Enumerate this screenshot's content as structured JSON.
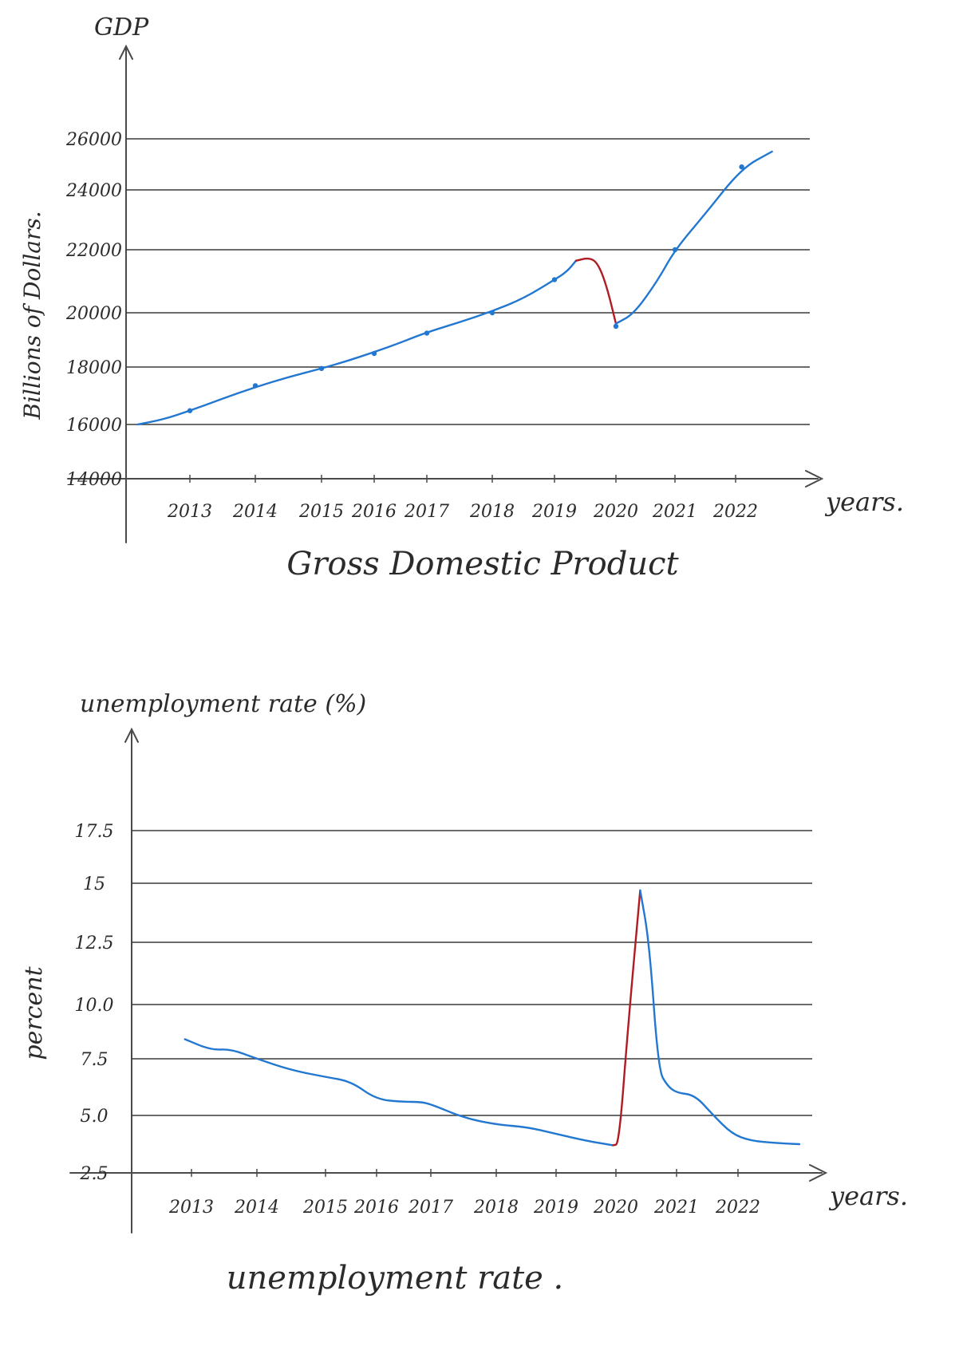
{
  "chart_data": [
    {
      "type": "line",
      "title": "Gross Domestic Product",
      "ylabel_top": "GDP",
      "ylabel_side": "Billions of Dollars.",
      "xlabel": "years.",
      "ylim": [
        14000,
        26000
      ],
      "yticks": [
        "14000",
        "16000",
        "18000",
        "20000",
        "22000",
        "24000",
        "26000"
      ],
      "xticks": [
        "2013",
        "2014",
        "2015",
        "2016",
        "2017",
        "2018",
        "2019",
        "2020",
        "2021",
        "2022"
      ],
      "grid": true,
      "series": [
        {
          "color": "#2277d1",
          "points": [
            [
              2012.2,
              16000
            ],
            [
              2012.6,
              16180
            ],
            [
              2013.0,
              16480
            ],
            [
              2013.5,
              16900
            ],
            [
              2014.0,
              17300
            ],
            [
              2014.5,
              17650
            ],
            [
              2015.0,
              17950
            ],
            [
              2015.5,
              18230
            ],
            [
              2016.0,
              18550
            ],
            [
              2016.5,
              18900
            ],
            [
              2017.0,
              19280
            ],
            [
              2017.5,
              19650
            ],
            [
              2018.0,
              20050
            ],
            [
              2018.5,
              20450
            ],
            [
              2019.0,
              21050
            ],
            [
              2019.2,
              21300
            ],
            [
              2019.35,
              21650
            ]
          ],
          "markers": [
            [
              2013.0,
              16480
            ],
            [
              2014.0,
              17350
            ],
            [
              2015.0,
              17950
            ],
            [
              2016.0,
              18500
            ],
            [
              2017.0,
              19250
            ],
            [
              2018.0,
              20000
            ],
            [
              2019.0,
              21050
            ],
            [
              2020.0,
              19500
            ],
            [
              2021.0,
              22000
            ],
            [
              2022.1,
              24900
            ]
          ]
        },
        {
          "color": "#b01c22",
          "points": [
            [
              2019.35,
              21650
            ],
            [
              2019.55,
              21750
            ],
            [
              2019.7,
              21600
            ],
            [
              2019.85,
              20850
            ],
            [
              2020.0,
              19600
            ]
          ]
        },
        {
          "color": "#2277d1",
          "points": [
            [
              2020.0,
              19600
            ],
            [
              2020.3,
              19950
            ],
            [
              2020.7,
              21000
            ],
            [
              2021.0,
              22000
            ],
            [
              2021.5,
              23200
            ],
            [
              2022.1,
              24850
            ],
            [
              2022.6,
              25500
            ]
          ]
        }
      ]
    },
    {
      "type": "line",
      "title": "unemployment rate .",
      "ylabel_top": "unemployment rate (%)",
      "ylabel_side": "percent",
      "xlabel": "years.",
      "ylim": [
        2.5,
        17.5
      ],
      "yticks": [
        "2.5",
        "5.0",
        "7.5",
        "10.0",
        "12.5",
        "15",
        "17.5"
      ],
      "xticks": [
        "2013",
        "2014",
        "2015",
        "2016",
        "2017",
        "2018",
        "2019",
        "2020",
        "2021",
        "2022"
      ],
      "grid": true,
      "series": [
        {
          "color": "#2277d1",
          "points": [
            [
              2012.9,
              8.4
            ],
            [
              2013.3,
              7.9
            ],
            [
              2013.6,
              7.95
            ],
            [
              2014.0,
              7.5
            ],
            [
              2014.5,
              7.0
            ],
            [
              2015.0,
              6.7
            ],
            [
              2015.5,
              6.5
            ],
            [
              2016.0,
              5.7
            ],
            [
              2016.5,
              5.6
            ],
            [
              2016.8,
              5.6
            ],
            [
              2017.0,
              5.5
            ],
            [
              2017.5,
              4.9
            ],
            [
              2018.0,
              4.6
            ],
            [
              2018.5,
              4.5
            ],
            [
              2019.0,
              4.2
            ],
            [
              2019.5,
              3.9
            ],
            [
              2019.95,
              3.7
            ]
          ]
        },
        {
          "color": "#b01c22",
          "points": [
            [
              2019.95,
              3.7
            ],
            [
              2020.05,
              3.75
            ],
            [
              2020.2,
              9.0
            ],
            [
              2020.4,
              14.7
            ]
          ]
        },
        {
          "color": "#2277d1",
          "points": [
            [
              2020.4,
              14.7
            ],
            [
              2020.55,
              12.5
            ],
            [
              2020.7,
              7.0
            ],
            [
              2020.85,
              6.3
            ],
            [
              2021.0,
              6.0
            ],
            [
              2021.3,
              5.9
            ],
            [
              2021.6,
              5.0
            ],
            [
              2021.9,
              4.2
            ],
            [
              2022.2,
              3.9
            ],
            [
              2022.6,
              3.8
            ],
            [
              2023.0,
              3.75
            ]
          ]
        }
      ]
    }
  ]
}
